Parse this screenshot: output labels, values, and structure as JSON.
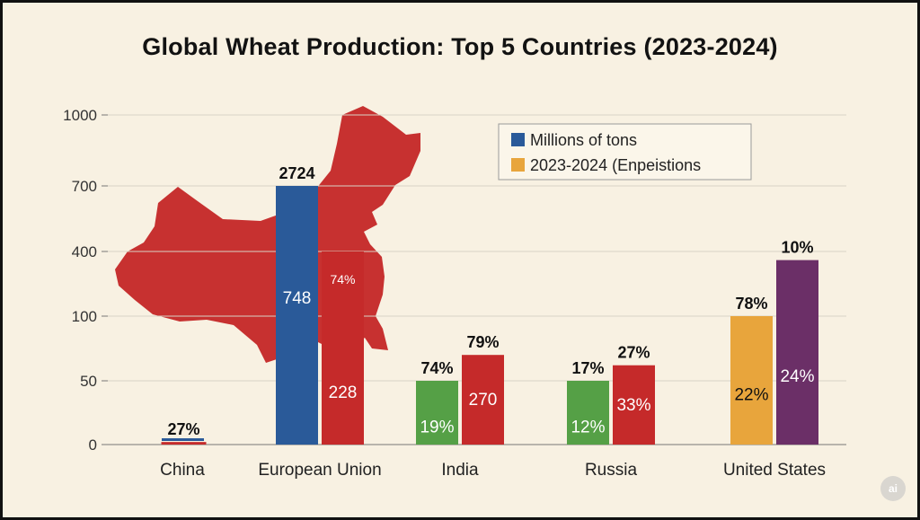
{
  "chart_data": {
    "type": "bar",
    "title": "Global Wheat Production: Top 5 Countries (2023-2024)",
    "xlabel": "",
    "ylabel": "",
    "y_ticks": [
      "0",
      "50",
      "100",
      "400",
      "700",
      "1000"
    ],
    "grid": true,
    "legend_position": "top-right",
    "categories": [
      "China",
      "European Union",
      "India",
      "Russia",
      "United States"
    ],
    "series": [
      {
        "name": "Millions of tons",
        "colors": [
          "#c52a2a",
          "#2a5a99",
          "#55a046",
          "#55a046",
          "#e8a53c"
        ],
        "values": [
          2,
          700,
          50,
          50,
          100
        ],
        "top_labels": [
          "27%",
          "2724",
          "74%",
          "17%",
          "78%"
        ],
        "inner_labels": [
          "",
          "748",
          "19%",
          "12%",
          "22%"
        ],
        "inner_label_colors": [
          "#ffffff",
          "#ffffff",
          "#ffffff",
          "#ffffff",
          "#111111"
        ]
      },
      {
        "name": "2023-2024 (Enpeistions",
        "colors": [
          null,
          "#c52a2a",
          "#c52a2a",
          "#c52a2a",
          "#6b2f67"
        ],
        "values": [
          null,
          400,
          70,
          62,
          360
        ],
        "top_labels": [
          "",
          "",
          "79%",
          "27%",
          "10%"
        ],
        "inner_labels": [
          "",
          "74%",
          "270",
          "33%",
          "24%"
        ],
        "bottom_labels": [
          "",
          "228",
          "",
          "",
          ""
        ]
      }
    ],
    "legend_colors": [
      "#2a5a99",
      "#e8a53c"
    ]
  },
  "watermark": "ai"
}
